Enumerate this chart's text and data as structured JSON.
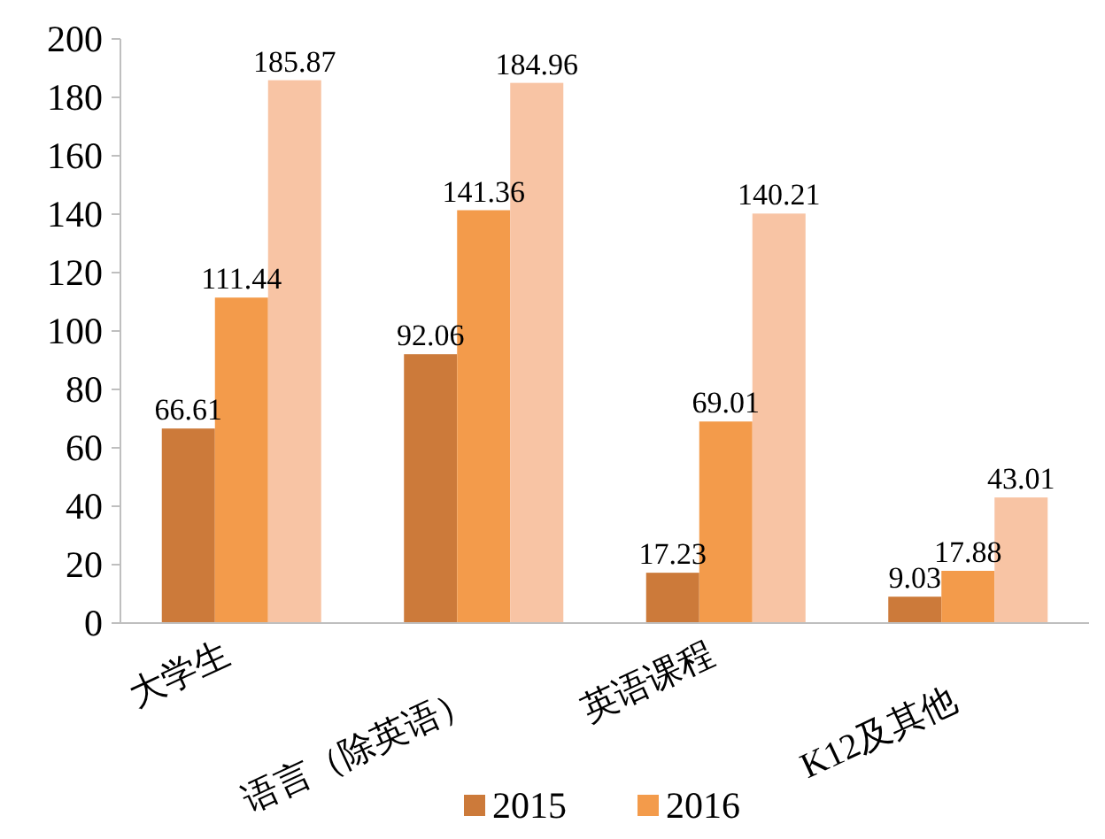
{
  "chart_data": {
    "type": "bar",
    "categories": [
      "大学生",
      "语言（除英语）",
      "英语课程",
      "K12及其他"
    ],
    "series": [
      {
        "name": "2015",
        "color": "#cc7a3a",
        "values": [
          66.61,
          92.06,
          17.23,
          9.03
        ]
      },
      {
        "name": "2016",
        "color": "#f39b4b",
        "values": [
          111.44,
          141.36,
          69.01,
          17.88
        ]
      },
      {
        "color": "#f8c4a4",
        "values": [
          185.87,
          184.96,
          140.21,
          43.01
        ]
      }
    ],
    "ylim": [
      0,
      200
    ],
    "yticks": [
      0,
      20,
      40,
      60,
      80,
      100,
      120,
      140,
      160,
      180,
      200
    ],
    "data_labels": true,
    "legend": "bottom",
    "grid": false
  }
}
